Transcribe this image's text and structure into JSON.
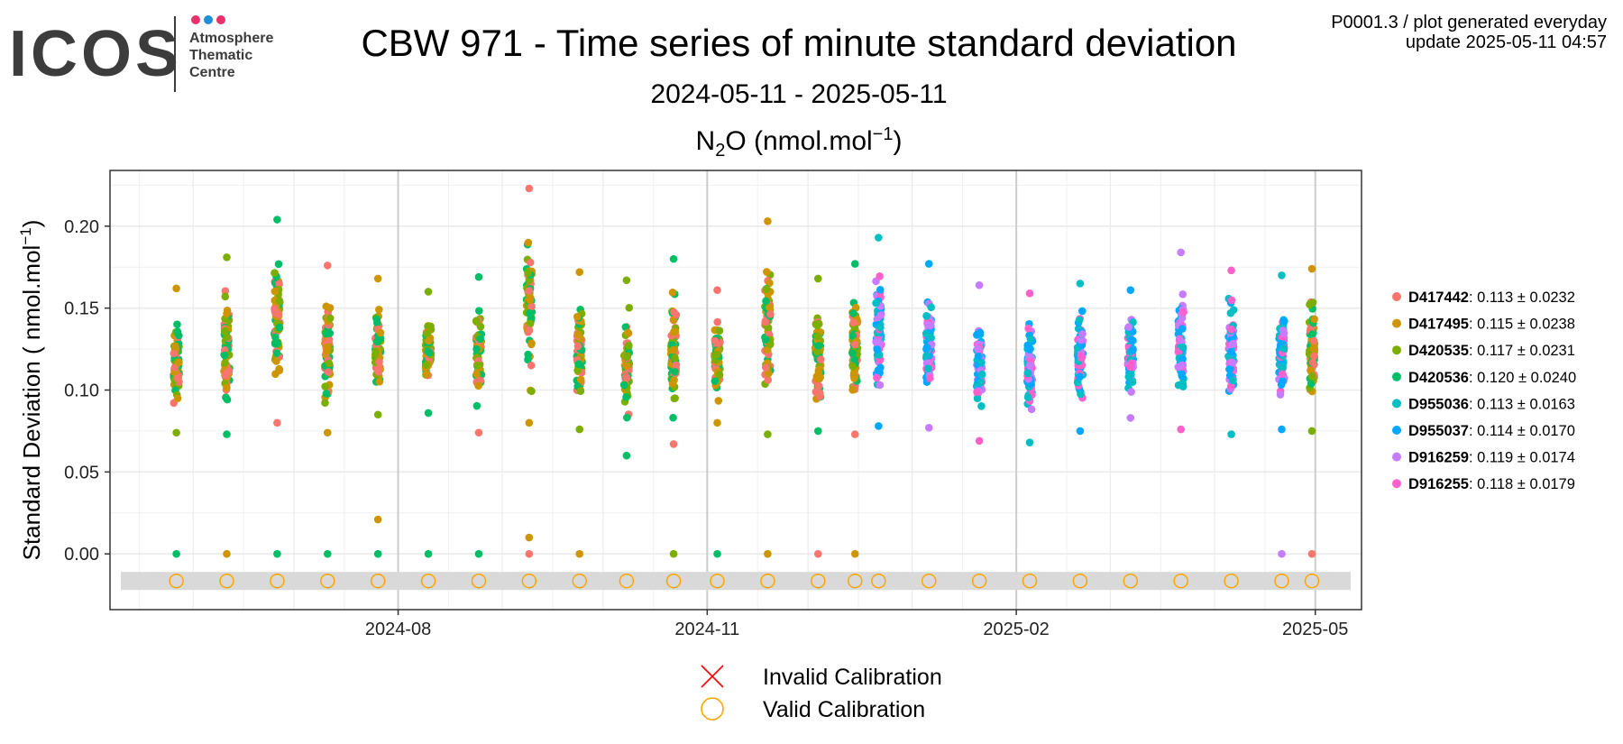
{
  "logo": {
    "wordmark": "ICOS",
    "line1": "Atmosphere",
    "line2": "Thematic",
    "line3": "Centre",
    "dot_colors": [
      "#e8316b",
      "#1e8fd8",
      "#e8316b"
    ]
  },
  "header": {
    "title": "CBW 971 - Time series of minute standard deviation",
    "date_range": "2024-05-11 - 2025-05-11",
    "species_prefix": "N",
    "species_sub": "2",
    "species_mid": "O (nmol.mol",
    "species_sup": "−1",
    "species_suffix": ")",
    "meta_line1": "P0001.3 / plot generated everyday",
    "meta_line2": "update  2025-05-11 04:57"
  },
  "chart_data": {
    "type": "scatter",
    "xlabel": "",
    "ylabel": "Standard Deviation ( nmol.mol",
    "ylabel_sup": "−1",
    "ylabel_suffix": ")",
    "x_range": [
      "2024-05-11",
      "2025-05-11"
    ],
    "ylim": [
      -0.034,
      0.234
    ],
    "y_ticks": [
      0.0,
      0.05,
      0.1,
      0.15,
      0.2
    ],
    "y_tick_labels": [
      "0.00",
      "0.05",
      "0.10",
      "0.15",
      "0.20"
    ],
    "x_ticks": [
      "2024-08-01",
      "2024-11-01",
      "2025-02-01",
      "2025-05-01"
    ],
    "x_tick_labels": [
      "2024-08",
      "2024-11",
      "2025-02",
      "2025-05"
    ],
    "grid": true,
    "legend_position": "right",
    "series": [
      {
        "name": "D417442",
        "stats": ": 0.113 ± 0.0232",
        "color": "#F8766D"
      },
      {
        "name": "D417495",
        "stats": ": 0.115 ± 0.0238",
        "color": "#CD9600"
      },
      {
        "name": "D420535",
        "stats": ": 0.117 ± 0.0231",
        "color": "#7CAE00"
      },
      {
        "name": "D420536",
        "stats": ": 0.120 ± 0.0240",
        "color": "#00BE67"
      },
      {
        "name": "D955036",
        "stats": ": 0.113 ± 0.0163",
        "color": "#00BFC4"
      },
      {
        "name": "D955037",
        "stats": ": 0.114 ± 0.0170",
        "color": "#00A9FF"
      },
      {
        "name": "D916259",
        "stats": ": 0.119 ± 0.0174",
        "color": "#C77CFF"
      },
      {
        "name": "D916255",
        "stats": ": 0.118 ± 0.0179",
        "color": "#FF61CC"
      }
    ],
    "clusters": [
      {
        "date": "2024-05-27",
        "lo": 0.074,
        "hi": 0.162,
        "zero": [
          "D420536"
        ],
        "series": [
          "D417442",
          "D417495",
          "D420535",
          "D420536"
        ]
      },
      {
        "date": "2024-06-11",
        "lo": 0.073,
        "hi": 0.181,
        "zero": [
          "D417495"
        ],
        "series": [
          "D417442",
          "D417495",
          "D420535",
          "D420536"
        ]
      },
      {
        "date": "2024-06-26",
        "lo": 0.08,
        "hi": 0.204,
        "zero": [
          "D420536"
        ],
        "series": [
          "D417442",
          "D417495",
          "D420535",
          "D420536"
        ]
      },
      {
        "date": "2024-07-11",
        "lo": 0.074,
        "hi": 0.176,
        "zero": [
          "D420536"
        ],
        "series": [
          "D417442",
          "D417495",
          "D420535",
          "D420536"
        ]
      },
      {
        "date": "2024-07-26",
        "lo": 0.085,
        "hi": 0.168,
        "zero": [
          "D420536"
        ],
        "extra": [
          {
            "s": "D417495",
            "y": 0.021
          }
        ],
        "series": [
          "D417442",
          "D417495",
          "D420535",
          "D420536"
        ]
      },
      {
        "date": "2024-08-10",
        "lo": 0.086,
        "hi": 0.16,
        "zero": [
          "D420536"
        ],
        "series": [
          "D417442",
          "D417495",
          "D420535",
          "D420536"
        ]
      },
      {
        "date": "2024-08-25",
        "lo": 0.074,
        "hi": 0.169,
        "zero": [
          "D420536"
        ],
        "series": [
          "D417442",
          "D417495",
          "D420535",
          "D420536"
        ]
      },
      {
        "date": "2024-09-09",
        "lo": 0.08,
        "hi": 0.223,
        "zero": [
          "D417442"
        ],
        "extra": [
          {
            "s": "D417495",
            "y": 0.01
          }
        ],
        "series": [
          "D417442",
          "D417495",
          "D420535",
          "D420536"
        ]
      },
      {
        "date": "2024-09-24",
        "lo": 0.076,
        "hi": 0.172,
        "zero": [
          "D417495"
        ],
        "series": [
          "D417442",
          "D417495",
          "D420535",
          "D420536"
        ]
      },
      {
        "date": "2024-10-08",
        "lo": 0.06,
        "hi": 0.167,
        "zero": [],
        "series": [
          "D417442",
          "D417495",
          "D420535",
          "D420536"
        ]
      },
      {
        "date": "2024-10-22",
        "lo": 0.067,
        "hi": 0.18,
        "zero": [
          "D420535"
        ],
        "series": [
          "D417442",
          "D417495",
          "D420535",
          "D420536"
        ]
      },
      {
        "date": "2024-11-04",
        "lo": 0.08,
        "hi": 0.161,
        "zero": [
          "D420536"
        ],
        "series": [
          "D417442",
          "D417495",
          "D420535",
          "D420536"
        ]
      },
      {
        "date": "2024-11-19",
        "lo": 0.073,
        "hi": 0.203,
        "zero": [
          "D417495"
        ],
        "series": [
          "D417442",
          "D417495",
          "D420535",
          "D420536"
        ]
      },
      {
        "date": "2024-12-04",
        "lo": 0.075,
        "hi": 0.168,
        "zero": [
          "D417442"
        ],
        "series": [
          "D417442",
          "D417495",
          "D420535",
          "D420536"
        ]
      },
      {
        "date": "2024-12-15",
        "lo": 0.073,
        "hi": 0.177,
        "zero": [
          "D417495"
        ],
        "series": [
          "D417442",
          "D417495",
          "D420535",
          "D420536"
        ]
      },
      {
        "date": "2024-12-22",
        "lo": 0.078,
        "hi": 0.193,
        "zero": [],
        "series": [
          "D955036",
          "D955037",
          "D916259",
          "D916255"
        ]
      },
      {
        "date": "2025-01-06",
        "lo": 0.077,
        "hi": 0.177,
        "zero": [],
        "series": [
          "D955036",
          "D955037",
          "D916259",
          "D916255"
        ]
      },
      {
        "date": "2025-01-21",
        "lo": 0.069,
        "hi": 0.164,
        "zero": [],
        "series": [
          "D955036",
          "D955037",
          "D916259",
          "D916255"
        ]
      },
      {
        "date": "2025-02-05",
        "lo": 0.068,
        "hi": 0.159,
        "zero": [],
        "series": [
          "D955036",
          "D955037",
          "D916259",
          "D916255"
        ]
      },
      {
        "date": "2025-02-20",
        "lo": 0.075,
        "hi": 0.165,
        "zero": [],
        "series": [
          "D955036",
          "D955037",
          "D916259",
          "D916255"
        ]
      },
      {
        "date": "2025-03-07",
        "lo": 0.083,
        "hi": 0.161,
        "zero": [],
        "series": [
          "D955036",
          "D955037",
          "D916259",
          "D916255"
        ]
      },
      {
        "date": "2025-03-22",
        "lo": 0.076,
        "hi": 0.184,
        "zero": [],
        "series": [
          "D955036",
          "D955037",
          "D916259",
          "D916255"
        ]
      },
      {
        "date": "2025-04-06",
        "lo": 0.073,
        "hi": 0.173,
        "zero": [],
        "series": [
          "D955036",
          "D955037",
          "D916259",
          "D916255"
        ]
      },
      {
        "date": "2025-04-21",
        "lo": 0.076,
        "hi": 0.17,
        "zero": [
          "D916259"
        ],
        "series": [
          "D955036",
          "D955037",
          "D916259",
          "D916255"
        ]
      },
      {
        "date": "2025-04-30",
        "lo": 0.075,
        "hi": 0.174,
        "zero": [
          "D417442"
        ],
        "series": [
          "D417442",
          "D417495",
          "D420535",
          "D420536"
        ]
      }
    ],
    "calibrations": [
      {
        "date": "2024-05-27",
        "status": "valid"
      },
      {
        "date": "2024-06-11",
        "status": "valid"
      },
      {
        "date": "2024-06-26",
        "status": "valid"
      },
      {
        "date": "2024-07-11",
        "status": "valid"
      },
      {
        "date": "2024-07-26",
        "status": "valid"
      },
      {
        "date": "2024-08-10",
        "status": "valid"
      },
      {
        "date": "2024-08-25",
        "status": "valid"
      },
      {
        "date": "2024-09-09",
        "status": "valid"
      },
      {
        "date": "2024-09-24",
        "status": "valid"
      },
      {
        "date": "2024-10-08",
        "status": "valid"
      },
      {
        "date": "2024-10-22",
        "status": "valid"
      },
      {
        "date": "2024-11-04",
        "status": "valid"
      },
      {
        "date": "2024-11-19",
        "status": "valid"
      },
      {
        "date": "2024-12-04",
        "status": "valid"
      },
      {
        "date": "2024-12-15",
        "status": "valid"
      },
      {
        "date": "2024-12-22",
        "status": "valid"
      },
      {
        "date": "2025-01-06",
        "status": "valid"
      },
      {
        "date": "2025-01-21",
        "status": "valid"
      },
      {
        "date": "2025-02-05",
        "status": "valid"
      },
      {
        "date": "2025-02-20",
        "status": "valid"
      },
      {
        "date": "2025-03-07",
        "status": "valid"
      },
      {
        "date": "2025-03-22",
        "status": "valid"
      },
      {
        "date": "2025-04-06",
        "status": "valid"
      },
      {
        "date": "2025-04-21",
        "status": "valid"
      },
      {
        "date": "2025-04-30",
        "status": "valid"
      }
    ],
    "calibration_legend": [
      {
        "label": "Invalid Calibration",
        "color": "#ff0000"
      },
      {
        "label": "Valid Calibration",
        "color": "#ffa500"
      }
    ]
  }
}
